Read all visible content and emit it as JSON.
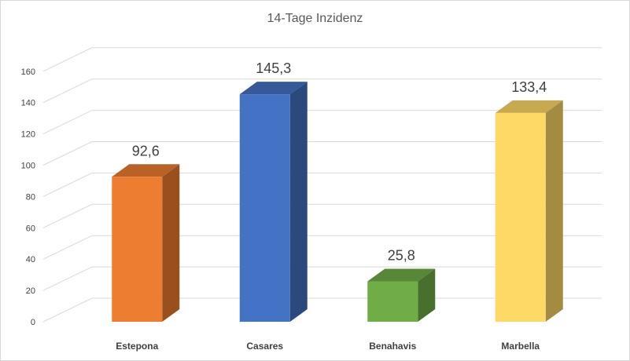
{
  "chart_data": {
    "type": "bar",
    "title": "14-Tage Inzidenz",
    "categories": [
      "Estepona",
      "Casares",
      "Benahavis",
      "Marbella"
    ],
    "values": [
      92.6,
      145.3,
      25.8,
      133.4
    ],
    "value_labels": [
      "92,6",
      "145,3",
      "25,8",
      "133,4"
    ],
    "ylim": [
      0,
      160
    ],
    "yticks": [
      "0",
      "20",
      "40",
      "60",
      "80",
      "100",
      "120",
      "140",
      "160"
    ],
    "xlabel": "",
    "ylabel": "",
    "grid": true,
    "legend": "none",
    "style": "3d-column",
    "colors": [
      "#ED7D31",
      "#4472C4",
      "#70AD47",
      "#FFD966"
    ]
  }
}
